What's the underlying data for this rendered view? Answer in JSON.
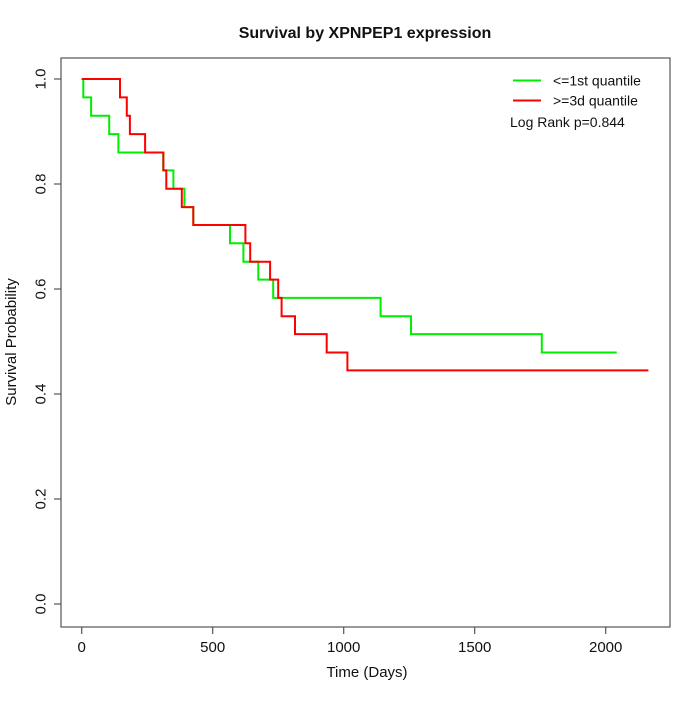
{
  "chart_data": {
    "type": "line",
    "subtype": "kaplan-meier-step",
    "title": "Survival by XPNPEP1 expression",
    "xlabel": "Time (Days)",
    "ylabel": "Survival Probability",
    "xlim": [
      0,
      2250
    ],
    "ylim": [
      0.0,
      1.0
    ],
    "x_ticks": [
      0,
      500,
      1000,
      1500,
      2000
    ],
    "y_ticks": [
      0.0,
      0.2,
      0.4,
      0.6,
      0.8,
      1.0
    ],
    "grid": "off",
    "legend_position": "top-right",
    "annotation": "Log Rank p=0.844",
    "series": [
      {
        "name": "<=1st quantile",
        "color": "#00ee00",
        "start": [
          0,
          1.0
        ],
        "points": [
          [
            6,
            0.965
          ],
          [
            36,
            0.93
          ],
          [
            105,
            0.895
          ],
          [
            140,
            0.86
          ],
          [
            311,
            0.826
          ],
          [
            350,
            0.791
          ],
          [
            392,
            0.756
          ],
          [
            426,
            0.722
          ],
          [
            566,
            0.687
          ],
          [
            617,
            0.652
          ],
          [
            674,
            0.618
          ],
          [
            731,
            0.583
          ],
          [
            1141,
            0.548
          ],
          [
            1257,
            0.514
          ],
          [
            1756,
            0.479
          ]
        ],
        "end_time": 2042,
        "final_probability": 0.479
      },
      {
        "name": ">=3d quantile",
        "color": "#ff0000",
        "start": [
          0,
          1.0
        ],
        "points": [
          [
            146,
            0.965
          ],
          [
            172,
            0.93
          ],
          [
            184,
            0.895
          ],
          [
            242,
            0.86
          ],
          [
            312,
            0.826
          ],
          [
            323,
            0.791
          ],
          [
            382,
            0.756
          ],
          [
            426,
            0.722
          ],
          [
            625,
            0.687
          ],
          [
            643,
            0.652
          ],
          [
            719,
            0.618
          ],
          [
            750,
            0.583
          ],
          [
            763,
            0.548
          ],
          [
            814,
            0.514
          ],
          [
            935,
            0.479
          ],
          [
            1014,
            0.445
          ]
        ],
        "end_time": 2163,
        "final_probability": 0.445
      }
    ],
    "axis_color": "#555555",
    "text_color": "#111111"
  }
}
